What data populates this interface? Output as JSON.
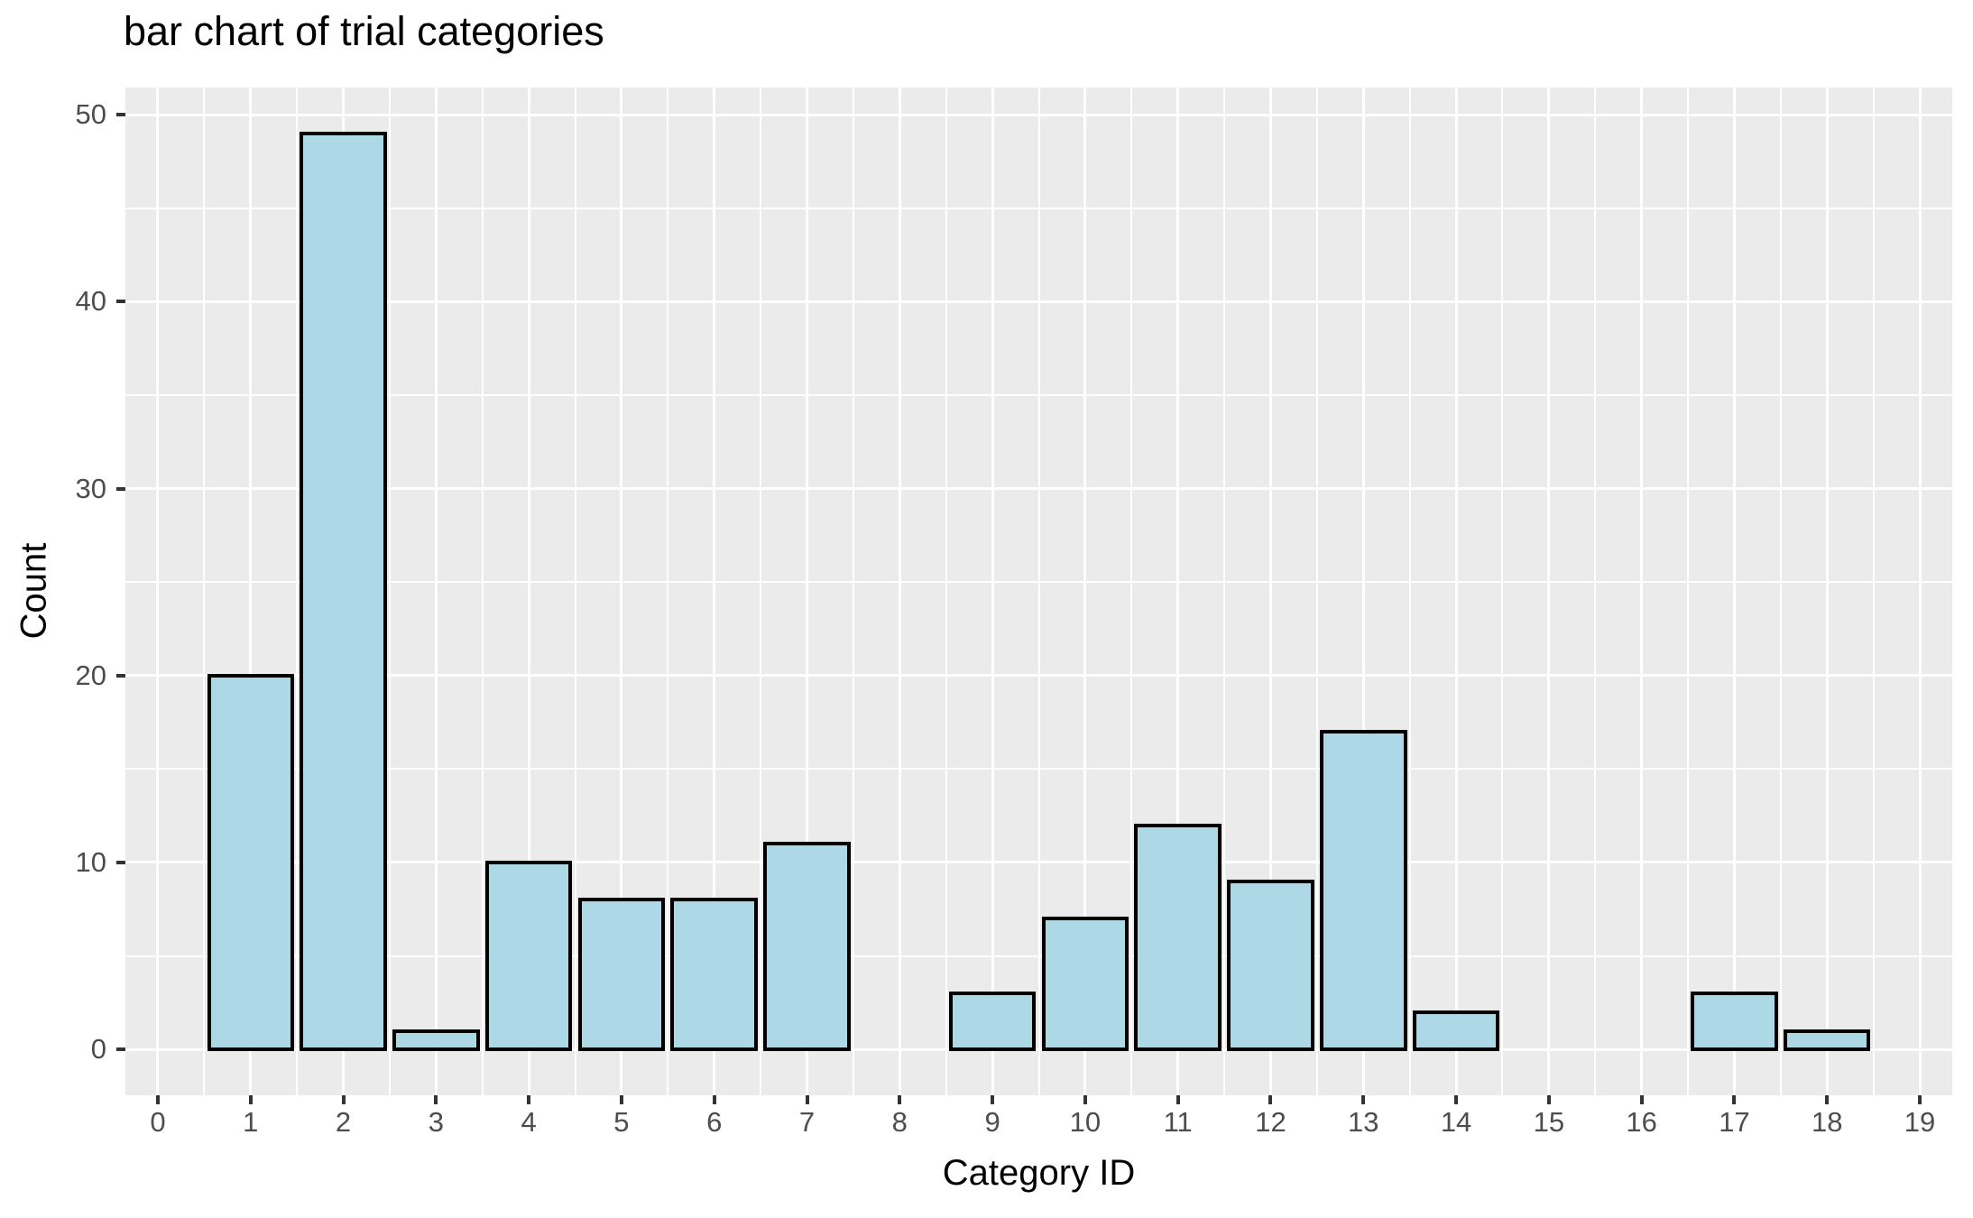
{
  "chart_data": {
    "type": "bar",
    "title": "bar chart of trial categories",
    "xlabel": "Category ID",
    "ylabel": "Count",
    "categories": [
      0,
      1,
      2,
      3,
      4,
      5,
      6,
      7,
      8,
      9,
      10,
      11,
      12,
      13,
      14,
      15,
      16,
      17,
      18,
      19
    ],
    "values": [
      0,
      20,
      49,
      1,
      10,
      8,
      8,
      11,
      0,
      3,
      7,
      12,
      9,
      17,
      2,
      0,
      0,
      3,
      1,
      0
    ],
    "x_ticks": [
      0,
      1,
      2,
      3,
      4,
      5,
      6,
      7,
      8,
      9,
      10,
      11,
      12,
      13,
      14,
      15,
      16,
      17,
      18,
      19
    ],
    "y_ticks": [
      0,
      10,
      20,
      30,
      40,
      50
    ],
    "y_minor_ticks": [
      5,
      15,
      25,
      35,
      45
    ],
    "x_minor_step": 0.5,
    "xlim": [
      -0.35,
      19.35
    ],
    "ylim": [
      -2.45,
      51.45
    ],
    "bar_width": 0.9,
    "grid": true,
    "legend_position": "none",
    "colors": {
      "bar_fill": "#ADD8E6",
      "bar_stroke": "#000000",
      "panel_background": "#EBEBEB",
      "gridline": "#FFFFFF",
      "tick_label": "#4D4D4D",
      "tick_mark": "#333333",
      "title_text": "#000000",
      "axis_title_text": "#000000",
      "page_background": "#FFFFFF"
    }
  }
}
